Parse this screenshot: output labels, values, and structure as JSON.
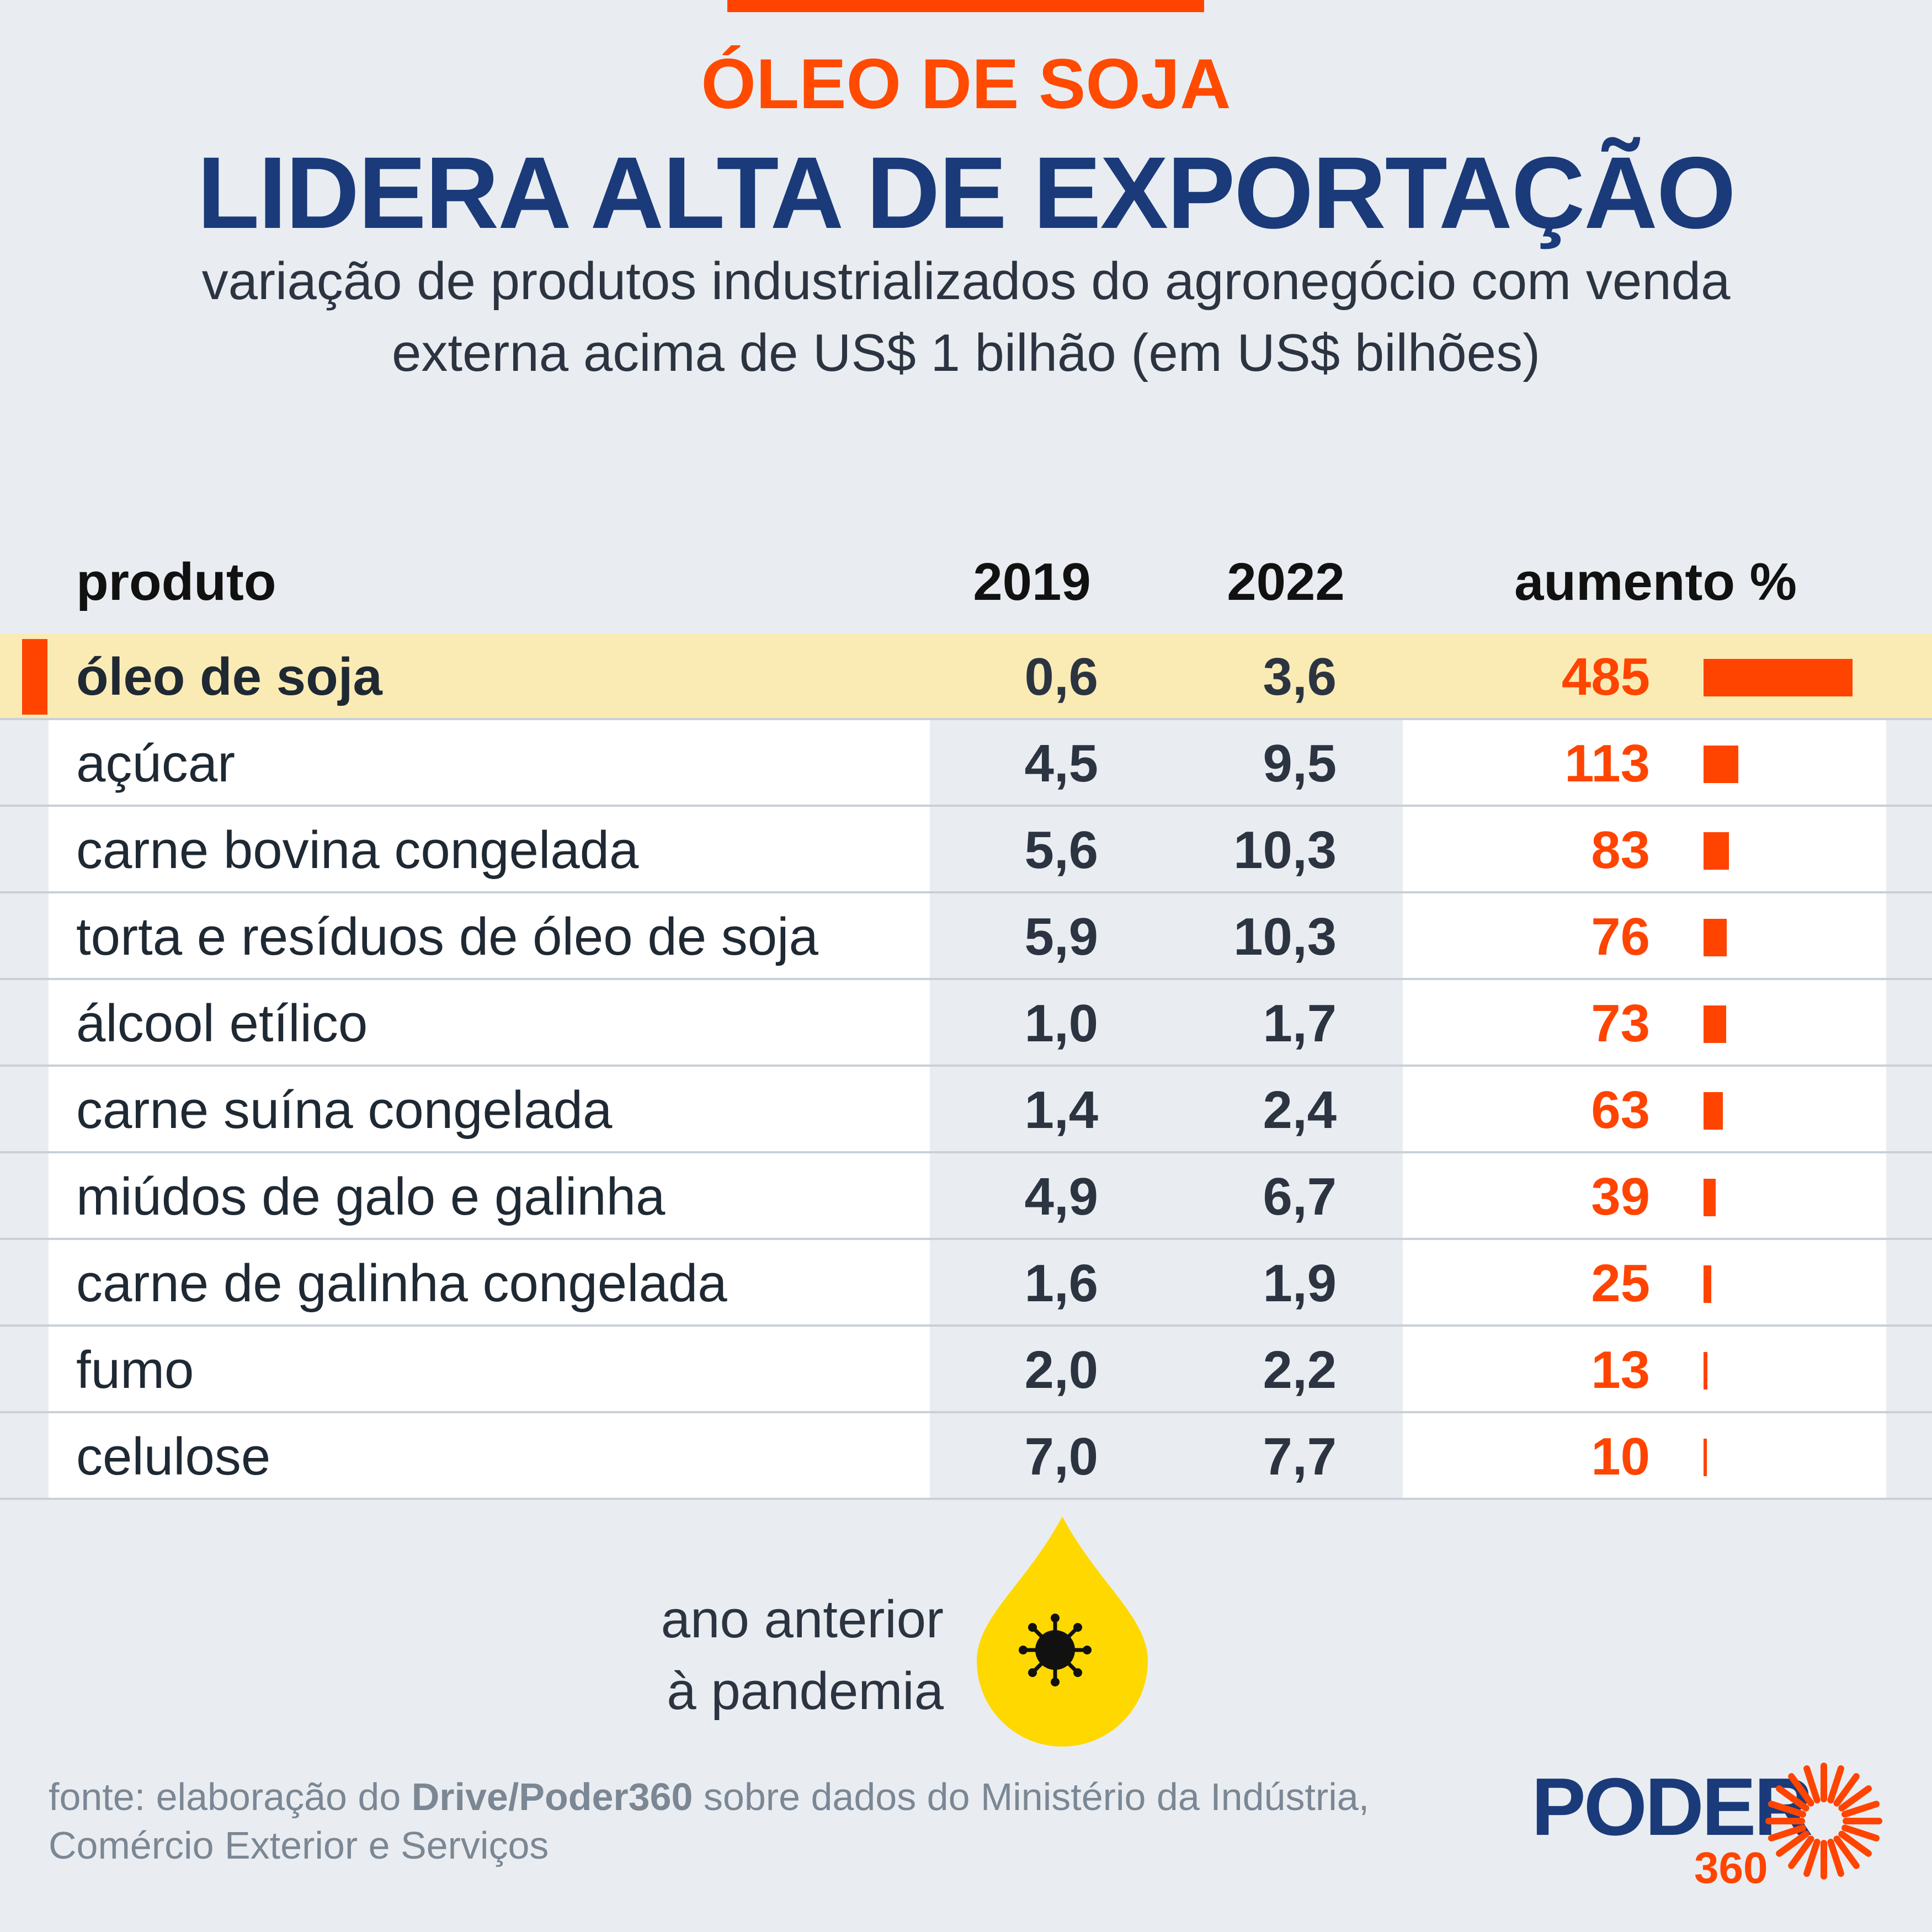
{
  "header": {
    "kicker": "ÓLEO DE SOJA",
    "title": "LIDERA ALTA DE EXPORTAÇÃO",
    "subtitle_line1": "variação de produtos industrializados do agronegócio com venda",
    "subtitle_line2": "externa acima de US$ 1 bilhão (em US$ bilhões)"
  },
  "columns": {
    "product": "produto",
    "y2019": "2019",
    "y2022": "2022",
    "increase": "aumento %"
  },
  "chart_data": {
    "type": "table",
    "columns": [
      "produto",
      "2019",
      "2022",
      "aumento %"
    ],
    "rows": [
      {
        "product": "óleo de soja",
        "v2019": "0,6",
        "v2022": "3,6",
        "increase": 485,
        "highlight": true
      },
      {
        "product": "açúcar",
        "v2019": "4,5",
        "v2022": "9,5",
        "increase": 113
      },
      {
        "product": "carne bovina congelada",
        "v2019": "5,6",
        "v2022": "10,3",
        "increase": 83
      },
      {
        "product": "torta e resíduos de óleo de soja",
        "v2019": "5,9",
        "v2022": "10,3",
        "increase": 76
      },
      {
        "product": "álcool etílico",
        "v2019": "1,0",
        "v2022": "1,7",
        "increase": 73
      },
      {
        "product": "carne suína congelada",
        "v2019": "1,4",
        "v2022": "2,4",
        "increase": 63
      },
      {
        "product": "miúdos de galo e galinha",
        "v2019": "4,9",
        "v2022": "6,7",
        "increase": 39
      },
      {
        "product": "carne de galinha congelada",
        "v2019": "1,6",
        "v2022": "1,9",
        "increase": 25
      },
      {
        "product": "fumo",
        "v2019": "2,0",
        "v2022": "2,2",
        "increase": 13
      },
      {
        "product": "celulose",
        "v2019": "7,0",
        "v2022": "7,7",
        "increase": 10
      }
    ]
  },
  "legend": {
    "line1": "ano anterior",
    "line2": "à pandemia",
    "icon": "virus-drop-icon"
  },
  "source": {
    "prefix": "fonte: elaboração do ",
    "bold": "Drive/Poder360",
    "suffix": " sobre dados do Ministério da Indústria,",
    "line2": "Comércio Exterior e Serviços"
  },
  "logo": {
    "word": "PODER",
    "number": "360"
  },
  "colors": {
    "accent": "#ff4400",
    "title": "#1a3a7a",
    "highlight_row": "#faebb5",
    "drop": "#ffd800",
    "background": "#e9edf1"
  }
}
